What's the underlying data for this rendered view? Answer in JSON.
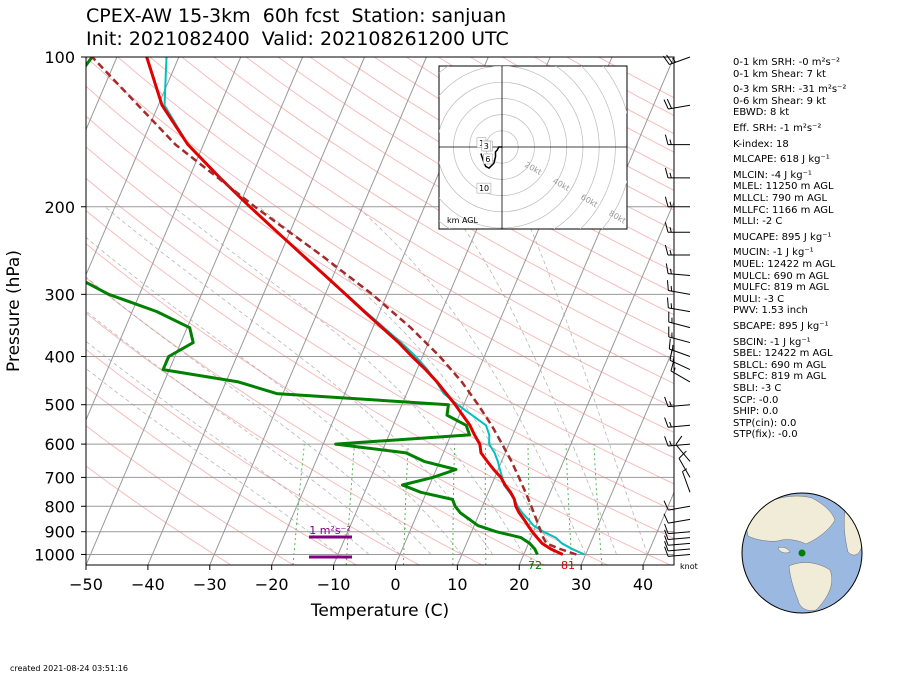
{
  "title": {
    "line1": "CPEX-AW 15-3km  60h fcst  Station: sanjuan",
    "line2": "Init: 2021082400  Valid: 202108261200 UTC"
  },
  "footer": {
    "created": "created 2021-08-24 03:51:16"
  },
  "colors": {
    "temperature": "#e00000",
    "dewpoint": "#008000",
    "virtual_temperature": "#00c0c0",
    "parcel": "#a52a2a",
    "isobar": "#999999",
    "isotherm": "#999999",
    "dry_adiabat": "#f4a0a0",
    "moist_adiabat": "#999999",
    "mixing_ratio": "#2ca02c",
    "srh_bar": "#800080",
    "globe_ocean": "#9bb8e0",
    "globe_land": "#f0ecd8"
  },
  "chart_data": [
    {
      "type": "line",
      "subtype": "skew-t log-p",
      "xlabel": "Temperature (C)",
      "ylabel": "Pressure (hPa)",
      "x_ticks": [
        -50,
        -40,
        -30,
        -20,
        -10,
        0,
        10,
        20,
        30,
        40
      ],
      "y_ticks": [
        100,
        200,
        300,
        400,
        500,
        600,
        700,
        800,
        900,
        1000
      ],
      "xlim": [
        -50,
        45
      ],
      "ylim": [
        1050,
        100
      ],
      "y_scale": "log",
      "grid": true,
      "surface_labels": {
        "dewpoint_f": "72",
        "temperature_f": "81"
      },
      "srh_bar_label": "1 m²s⁻²",
      "wind_units_label": "knot",
      "series": [
        {
          "name": "temperature",
          "points": [
            [
              1000,
              26.3
            ],
            [
              975,
              24.0
            ],
            [
              950,
              22.2
            ],
            [
              925,
              21.0
            ],
            [
              900,
              19.8
            ],
            [
              875,
              18.7
            ],
            [
              850,
              17.6
            ],
            [
              825,
              16.4
            ],
            [
              800,
              15.4
            ],
            [
              775,
              14.7
            ],
            [
              750,
              13.6
            ],
            [
              725,
              12.2
            ],
            [
              700,
              11.0
            ],
            [
              675,
              9.3
            ],
            [
              650,
              7.7
            ],
            [
              625,
              6.1
            ],
            [
              600,
              5.3
            ],
            [
              575,
              3.8
            ],
            [
              550,
              2.4
            ],
            [
              500,
              -1.4
            ],
            [
              475,
              -3.6
            ],
            [
              450,
              -5.9
            ],
            [
              425,
              -8.6
            ],
            [
              400,
              -11.7
            ],
            [
              375,
              -14.8
            ],
            [
              350,
              -18.5
            ],
            [
              325,
              -22.5
            ],
            [
              300,
              -26.7
            ],
            [
              275,
              -31.3
            ],
            [
              250,
              -36.4
            ],
            [
              225,
              -42.0
            ],
            [
              200,
              -48.2
            ],
            [
              175,
              -55.0
            ],
            [
              150,
              -62.5
            ],
            [
              125,
              -69.4
            ],
            [
              100,
              -75.2
            ]
          ]
        },
        {
          "name": "dewpoint",
          "points": [
            [
              1000,
              22.2
            ],
            [
              975,
              21.4
            ],
            [
              950,
              20.2
            ],
            [
              925,
              18.4
            ],
            [
              900,
              14.0
            ],
            [
              875,
              10.6
            ],
            [
              850,
              8.8
            ],
            [
              825,
              6.9
            ],
            [
              800,
              5.6
            ],
            [
              775,
              4.7
            ],
            [
              750,
              -0.9
            ],
            [
              725,
              -4.4
            ],
            [
              700,
              0.0
            ],
            [
              675,
              3.2
            ],
            [
              650,
              -2.5
            ],
            [
              625,
              -6.0
            ],
            [
              600,
              -18.0
            ],
            [
              575,
              3.0
            ],
            [
              550,
              1.8
            ],
            [
              525,
              -2.0
            ],
            [
              500,
              -2.5
            ],
            [
              475,
              -31.0
            ],
            [
              450,
              -38.0
            ],
            [
              425,
              -51.0
            ],
            [
              400,
              -51.0
            ],
            [
              375,
              -48.0
            ],
            [
              350,
              -49.6
            ],
            [
              325,
              -56.0
            ],
            [
              300,
              -65.0
            ],
            [
              275,
              -72.0
            ],
            [
              250,
              -77.5
            ],
            [
              225,
              -82.0
            ],
            [
              200,
              -86.0
            ],
            [
              175,
              -86.5
            ],
            [
              150,
              -84.5
            ],
            [
              125,
              -86.5
            ],
            [
              100,
              -84.0
            ]
          ]
        },
        {
          "name": "virtual_temperature",
          "points": [
            [
              1000,
              29.8
            ],
            [
              975,
              27.4
            ],
            [
              950,
              25.4
            ],
            [
              925,
              24.0
            ],
            [
              900,
              21.6
            ],
            [
              875,
              19.6
            ],
            [
              850,
              18.3
            ],
            [
              825,
              16.9
            ],
            [
              800,
              15.7
            ],
            [
              775,
              14.7
            ],
            [
              750,
              13.4
            ],
            [
              725,
              12.0
            ],
            [
              700,
              11.2
            ],
            [
              675,
              10.3
            ],
            [
              650,
              9.4
            ],
            [
              625,
              8.3
            ],
            [
              600,
              6.8
            ],
            [
              575,
              6.2
            ],
            [
              550,
              5.0
            ],
            [
              500,
              -1.0
            ],
            [
              475,
              -4.0
            ],
            [
              450,
              -6.0
            ],
            [
              425,
              -8.3
            ],
            [
              400,
              -11.1
            ],
            [
              375,
              -14.4
            ],
            [
              350,
              -18.2
            ],
            [
              325,
              -22.3
            ],
            [
              300,
              -26.6
            ],
            [
              275,
              -31.3
            ],
            [
              250,
              -36.4
            ],
            [
              225,
              -42.0
            ],
            [
              200,
              -48.2
            ],
            [
              175,
              -55.0
            ],
            [
              150,
              -62.5
            ],
            [
              125,
              -69.0
            ],
            [
              100,
              -72.0
            ]
          ]
        },
        {
          "name": "parcel",
          "points": [
            [
              1000,
              28.5
            ],
            [
              975,
              25.5
            ],
            [
              950,
              22.9
            ],
            [
              925,
              22.0
            ],
            [
              900,
              21.2
            ],
            [
              850,
              19.6
            ],
            [
              800,
              17.9
            ],
            [
              750,
              16.0
            ],
            [
              700,
              13.9
            ],
            [
              650,
              11.6
            ],
            [
              600,
              8.9
            ],
            [
              550,
              5.9
            ],
            [
              500,
              2.3
            ],
            [
              450,
              -1.9
            ],
            [
              400,
              -7.2
            ],
            [
              350,
              -13.9
            ],
            [
              300,
              -22.4
            ],
            [
              250,
              -33.4
            ],
            [
              200,
              -47.4
            ],
            [
              150,
              -64.5
            ],
            [
              100,
              -84.0
            ]
          ]
        }
      ]
    },
    {
      "type": "line",
      "subtype": "hodograph",
      "ring_labels": [
        "20kt",
        "40kt",
        "60kt",
        "80kt"
      ],
      "height_labels": [
        "1",
        "2",
        "3",
        "6",
        "10"
      ],
      "unit_label": "km AGL",
      "series": [
        {
          "name": "hodograph",
          "points": [
            [
              0,
              0
            ],
            [
              -2,
              0
            ],
            [
              -3,
              -2
            ],
            [
              -4,
              -3
            ],
            [
              -4,
              -6
            ],
            [
              -5,
              -10
            ],
            [
              -8,
              -13
            ],
            [
              -10,
              -12
            ],
            [
              -11,
              -10
            ],
            [
              -13,
              -4
            ]
          ]
        }
      ]
    }
  ],
  "indices": [
    "0-1 km SRH: -0 m²s⁻²",
    "0-1 km Shear: 7 kt",
    "0-3 km SRH: -31 m²s⁻²",
    "0-6 km Shear: 9 kt",
    "EBWD: 8 kt",
    "Eff. SRH: -1 m²s⁻²",
    "K-index: 18",
    "MLCAPE: 618 J kg⁻¹",
    "MLCIN: -4 J kg⁻¹",
    "MLEL: 11250 m AGL",
    "MLLCL: 790 m AGL",
    "MLLFC: 1166 m AGL",
    "MLLI: -2 C",
    "MUCAPE: 895 J kg⁻¹",
    "MUCIN: -1 J kg⁻¹",
    "MUEL: 12422 m AGL",
    "MULCL: 690 m AGL",
    "MULFC: 819 m AGL",
    "MULI: -3 C",
    "PWV: 1.53 inch",
    "SBCAPE: 895 J kg⁻¹",
    "SBCIN: -1 J kg⁻¹",
    "SBEL: 12422 m AGL",
    "SBLCL: 690 m AGL",
    "SBLFC: 819 m AGL",
    "SBLI: -3 C",
    "SCP: -0.0",
    "SHIP: 0.0",
    "STP(cin): 0.0",
    "STP(fix): -0.0"
  ],
  "wind_barbs": [
    {
      "p": 100,
      "speed": 25,
      "dir": 250
    },
    {
      "p": 125,
      "speed": 20,
      "dir": 260
    },
    {
      "p": 150,
      "speed": 15,
      "dir": 270
    },
    {
      "p": 175,
      "speed": 15,
      "dir": 270
    },
    {
      "p": 200,
      "speed": 15,
      "dir": 270
    },
    {
      "p": 225,
      "speed": 15,
      "dir": 270
    },
    {
      "p": 250,
      "speed": 15,
      "dir": 270
    },
    {
      "p": 275,
      "speed": 15,
      "dir": 275
    },
    {
      "p": 300,
      "speed": 15,
      "dir": 280
    },
    {
      "p": 325,
      "speed": 15,
      "dir": 280
    },
    {
      "p": 350,
      "speed": 15,
      "dir": 285
    },
    {
      "p": 375,
      "speed": 15,
      "dir": 285
    },
    {
      "p": 400,
      "speed": 15,
      "dir": 290
    },
    {
      "p": 425,
      "speed": 15,
      "dir": 295
    },
    {
      "p": 450,
      "speed": 15,
      "dir": 300
    },
    {
      "p": 500,
      "speed": 15,
      "dir": 265
    },
    {
      "p": 550,
      "speed": 15,
      "dir": 265
    },
    {
      "p": 600,
      "speed": 15,
      "dir": 265
    },
    {
      "p": 650,
      "speed": 10,
      "dir": 320
    },
    {
      "p": 700,
      "speed": 10,
      "dir": 330
    },
    {
      "p": 750,
      "speed": 5,
      "dir": 340
    },
    {
      "p": 800,
      "speed": 10,
      "dir": 260
    },
    {
      "p": 850,
      "speed": 10,
      "dir": 260
    },
    {
      "p": 900,
      "speed": 10,
      "dir": 265
    },
    {
      "p": 925,
      "speed": 10,
      "dir": 265
    },
    {
      "p": 950,
      "speed": 10,
      "dir": 265
    },
    {
      "p": 975,
      "speed": 10,
      "dir": 265
    },
    {
      "p": 1000,
      "speed": 10,
      "dir": 265
    }
  ],
  "globe": {
    "station_marker_color": "#008000"
  }
}
